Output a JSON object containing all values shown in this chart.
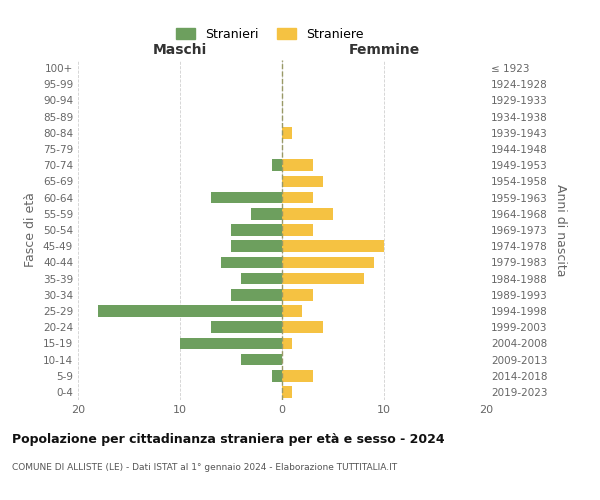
{
  "age_groups": [
    "0-4",
    "5-9",
    "10-14",
    "15-19",
    "20-24",
    "25-29",
    "30-34",
    "35-39",
    "40-44",
    "45-49",
    "50-54",
    "55-59",
    "60-64",
    "65-69",
    "70-74",
    "75-79",
    "80-84",
    "85-89",
    "90-94",
    "95-99",
    "100+"
  ],
  "birth_years": [
    "2019-2023",
    "2014-2018",
    "2009-2013",
    "2004-2008",
    "1999-2003",
    "1994-1998",
    "1989-1993",
    "1984-1988",
    "1979-1983",
    "1974-1978",
    "1969-1973",
    "1964-1968",
    "1959-1963",
    "1954-1958",
    "1949-1953",
    "1944-1948",
    "1939-1943",
    "1934-1938",
    "1929-1933",
    "1924-1928",
    "≤ 1923"
  ],
  "males": [
    0,
    1,
    4,
    10,
    7,
    18,
    5,
    4,
    6,
    5,
    5,
    3,
    7,
    0,
    1,
    0,
    0,
    0,
    0,
    0,
    0
  ],
  "females": [
    1,
    3,
    0,
    1,
    4,
    2,
    3,
    8,
    9,
    10,
    3,
    5,
    3,
    4,
    3,
    0,
    1,
    0,
    0,
    0,
    0
  ],
  "male_color": "#6d9f5e",
  "female_color": "#f5c242",
  "title": "Popolazione per cittadinanza straniera per età e sesso - 2024",
  "subtitle": "COMUNE DI ALLISTE (LE) - Dati ISTAT al 1° gennaio 2024 - Elaborazione TUTTITALIA.IT",
  "xlabel_left": "Maschi",
  "xlabel_right": "Femmine",
  "ylabel_left": "Fasce di età",
  "ylabel_right": "Anni di nascita",
  "legend_stranieri": "Stranieri",
  "legend_straniere": "Straniere",
  "xlim": 20,
  "background_color": "#ffffff",
  "grid_color": "#d0d0d0"
}
